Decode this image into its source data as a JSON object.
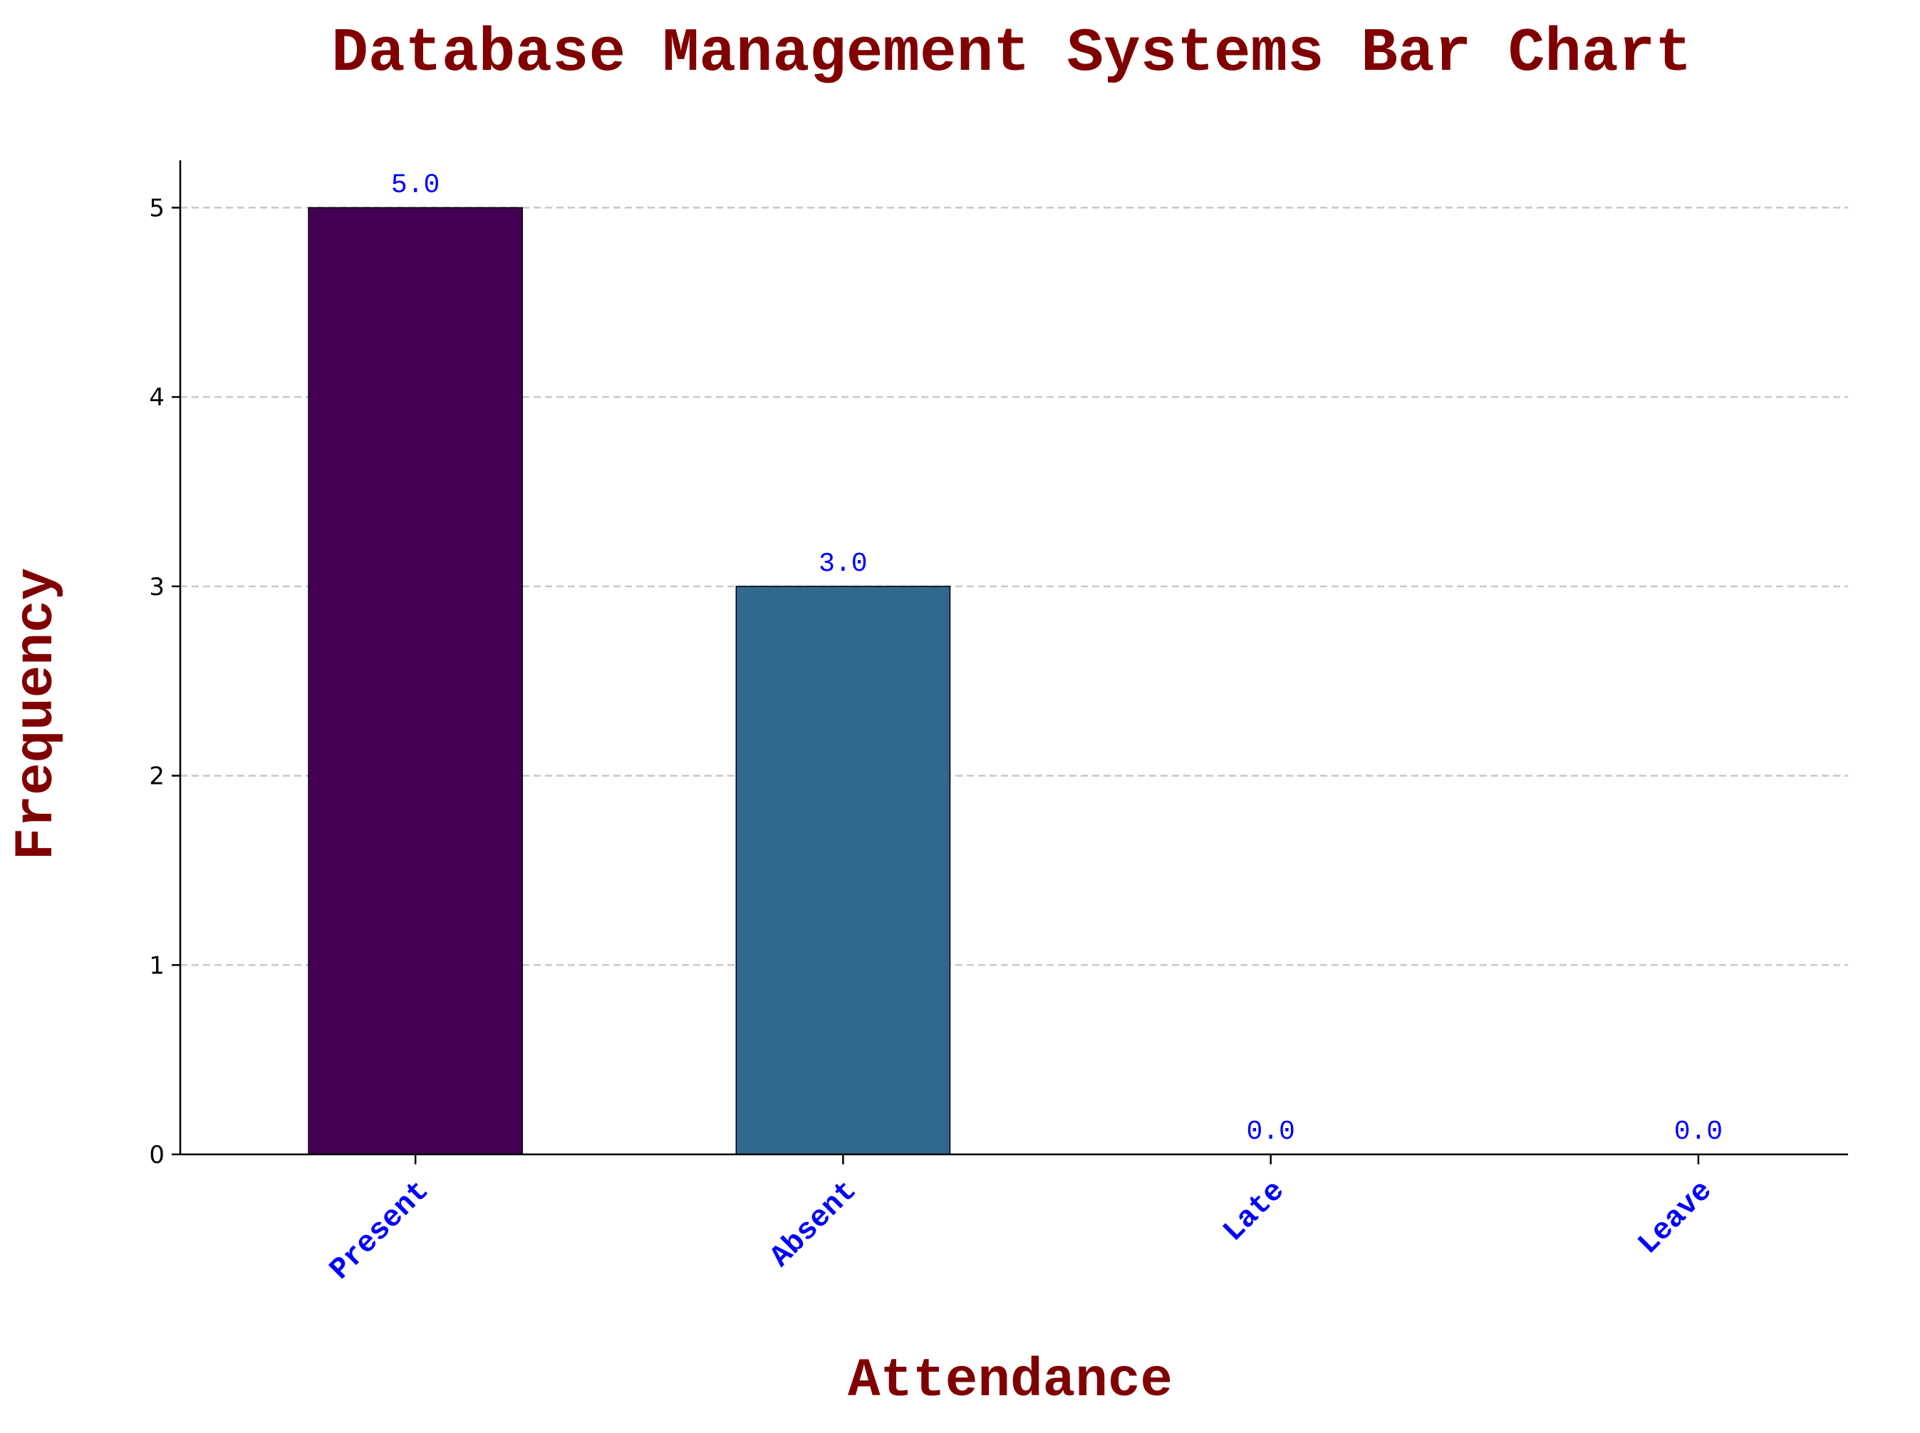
{
  "chart_data": {
    "type": "bar",
    "title": "Database Management Systems Bar Chart",
    "xlabel": "Attendance",
    "ylabel": "Frequency",
    "categories": [
      "Present",
      "Absent",
      "Late",
      "Leave"
    ],
    "values": [
      5.0,
      3.0,
      0.0,
      0.0
    ],
    "data_labels": [
      "5.0",
      "3.0",
      "0.0",
      "0.0"
    ],
    "ylim": [
      0,
      5.25
    ],
    "yticks": [
      0,
      1,
      2,
      3,
      4,
      5
    ],
    "ytick_labels": [
      "0",
      "1",
      "2",
      "3",
      "4",
      "5"
    ],
    "grid": "y-dashed",
    "legend": "none",
    "colors": {
      "title": "#800000",
      "axis_label": "#800000",
      "xtick_label": "#0000ff",
      "data_label": "#0000ff",
      "bars": [
        "#440154",
        "#31688e",
        "#35b779",
        "#fde725"
      ],
      "grid": "#c8c8c8"
    }
  }
}
